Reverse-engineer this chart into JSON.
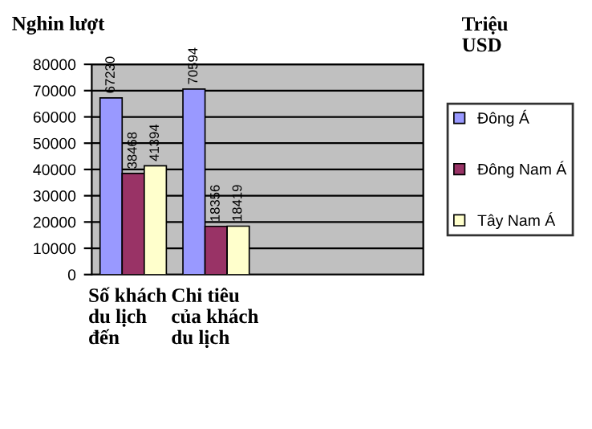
{
  "chart_data": {
    "type": "bar",
    "ylabel": "Nghin lượt",
    "annotations": [
      "Triệu USD"
    ],
    "categories": [
      "Số khách du lịch đến",
      "Chi tiêu của khách du lịch",
      null,
      null
    ],
    "series": [
      {
        "name": "Đông Á",
        "color": "#9999ff",
        "values": [
          67230,
          70594,
          null,
          null
        ]
      },
      {
        "name": "Đông Nam Á",
        "color": "#993366",
        "values": [
          38468,
          18356,
          null,
          null
        ]
      },
      {
        "name": "Tây Nam Á",
        "color": "#ffffcc",
        "values": [
          41394,
          18419,
          null,
          null
        ]
      }
    ],
    "ylim": [
      0,
      80000
    ],
    "yticks": [
      0,
      10000,
      20000,
      30000,
      40000,
      50000,
      60000,
      70000,
      80000
    ],
    "grid": "y",
    "legend": "right",
    "data_labels": true
  }
}
